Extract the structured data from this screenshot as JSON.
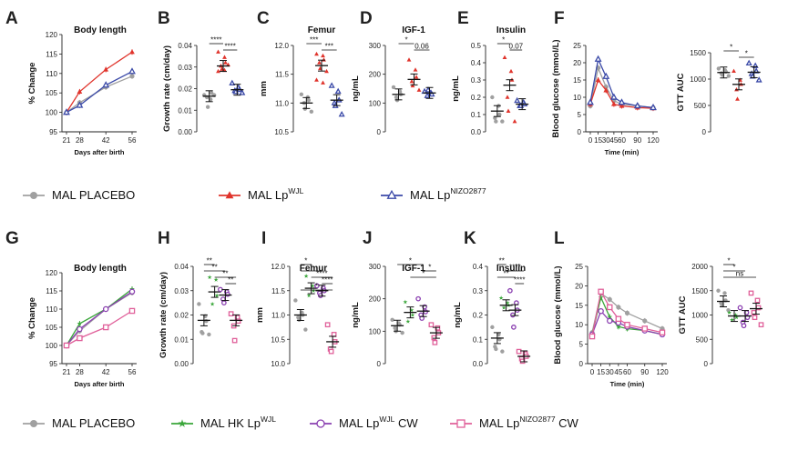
{
  "colors": {
    "placebo": "#a0a0a0",
    "wjl": "#e0342c",
    "nizo": "#3b4aa8",
    "hk": "#3aa63a",
    "wjlcw": "#8a3fb0",
    "nizocw": "#e0609a"
  },
  "legend_top": [
    {
      "key": "placebo",
      "label": "MAL PLACEBO",
      "sup": "",
      "marker": "circle"
    },
    {
      "key": "wjl",
      "label": "MAL Lp",
      "sup": "WJL",
      "marker": "triangle"
    },
    {
      "key": "nizo",
      "label": "MAL Lp",
      "sup": "NIZO2877",
      "marker": "triangle-open"
    }
  ],
  "legend_bottom": [
    {
      "key": "placebo",
      "label": "MAL PLACEBO",
      "sup": "",
      "marker": "circle"
    },
    {
      "key": "hk",
      "label": "MAL HK Lp",
      "sup": "WJL",
      "marker": "star"
    },
    {
      "key": "wjlcw",
      "label": "MAL Lp",
      "sup": "WJL",
      "label2": " CW",
      "marker": "circle-open"
    },
    {
      "key": "nizocw",
      "label": "MAL Lp",
      "sup": "NIZO2877",
      "label2": " CW",
      "marker": "square-open"
    }
  ],
  "chart_data": [
    {
      "id": "A",
      "type": "line",
      "title": "Body length",
      "xlabel": "Days after birth",
      "ylabel": "% Change",
      "x": [
        21,
        28,
        42,
        56
      ],
      "xticks": [
        "21",
        "28",
        "42",
        "56"
      ],
      "ylim": [
        95,
        120
      ],
      "yticks": [
        95,
        100,
        105,
        110,
        115,
        120
      ],
      "series": [
        {
          "key": "placebo",
          "values": [
            100,
            102.5,
            106.5,
            109.3
          ]
        },
        {
          "key": "wjl",
          "values": [
            100,
            105.3,
            111,
            115.5
          ]
        },
        {
          "key": "nizo",
          "values": [
            100,
            101.8,
            107,
            110.5
          ]
        }
      ]
    },
    {
      "id": "B",
      "type": "scatter",
      "title": "",
      "ylabel": "Growth rate (cm/day)",
      "ylim": [
        0.0,
        0.04
      ],
      "yticks": [
        "0.00",
        "0.01",
        "0.02",
        "0.03",
        "0.04"
      ],
      "groups": [
        {
          "key": "placebo",
          "mean": 0.0165,
          "points": [
            0.017,
            0.015,
            0.018,
            0.016,
            0.0115,
            0.017
          ]
        },
        {
          "key": "wjl",
          "mean": 0.0305,
          "points": [
            0.037,
            0.0345,
            0.032,
            0.0305,
            0.029,
            0.031,
            0.028,
            0.0285
          ]
        },
        {
          "key": "nizo",
          "mean": 0.0195,
          "points": [
            0.0225,
            0.0205,
            0.0195,
            0.019,
            0.0185,
            0.018
          ]
        }
      ],
      "sig": [
        {
          "from": 0,
          "to": 1,
          "label": "****"
        },
        {
          "from": 1,
          "to": 2,
          "label": "****"
        }
      ]
    },
    {
      "id": "C",
      "type": "scatter",
      "title": "Femur",
      "ylabel": "mm",
      "ylim": [
        10.5,
        12.0
      ],
      "yticks": [
        "10.5",
        "11.0",
        "11.5",
        "12.0"
      ],
      "groups": [
        {
          "key": "placebo",
          "mean": 11.0,
          "points": [
            11.15,
            11.1,
            11.05,
            11.0,
            10.9,
            10.85
          ]
        },
        {
          "key": "wjl",
          "mean": 11.65,
          "points": [
            11.85,
            11.82,
            11.75,
            11.7,
            11.6,
            11.55,
            11.4,
            11.35
          ]
        },
        {
          "key": "nizo",
          "mean": 11.05,
          "points": [
            11.3,
            11.2,
            11.05,
            11.0,
            10.95,
            10.8
          ]
        }
      ],
      "sig": [
        {
          "from": 0,
          "to": 1,
          "label": "***"
        },
        {
          "from": 1,
          "to": 2,
          "label": "***"
        }
      ]
    },
    {
      "id": "D",
      "type": "scatter",
      "title": "IGF-1",
      "ylabel": "ng/mL",
      "ylim": [
        0,
        300
      ],
      "yticks": [
        "0",
        "100",
        "200",
        "300"
      ],
      "groups": [
        {
          "key": "placebo",
          "mean": 130,
          "points": [
            155,
            140,
            130,
            120,
            110
          ]
        },
        {
          "key": "wjl",
          "mean": 182,
          "points": [
            250,
            215,
            190,
            175,
            160,
            145
          ]
        },
        {
          "key": "nizo",
          "mean": 135,
          "points": [
            140,
            135,
            130,
            125,
            145
          ]
        }
      ],
      "sig": [
        {
          "from": 0,
          "to": 1,
          "label": "*"
        },
        {
          "from": 1,
          "to": 2,
          "label": "0.06"
        }
      ]
    },
    {
      "id": "E",
      "type": "scatter",
      "title": "Insulin",
      "ylabel": "ng/mL",
      "ylim": [
        0.0,
        0.5
      ],
      "yticks": [
        "0.0",
        "0.1",
        "0.2",
        "0.3",
        "0.4",
        "0.5"
      ],
      "groups": [
        {
          "key": "placebo",
          "mean": 0.12,
          "points": [
            0.2,
            0.15,
            0.1,
            0.08,
            0.06,
            0.06
          ]
        },
        {
          "key": "wjl",
          "mean": 0.27,
          "points": [
            0.43,
            0.35,
            0.3,
            0.2,
            0.12,
            0.06
          ]
        },
        {
          "key": "nizo",
          "mean": 0.16,
          "points": [
            0.18,
            0.17,
            0.16,
            0.15,
            0.15
          ]
        }
      ],
      "sig": [
        {
          "from": 0,
          "to": 1,
          "label": "*"
        },
        {
          "from": 1,
          "to": 2,
          "label": "0.07"
        }
      ]
    },
    {
      "id": "F",
      "type": "line",
      "title": "",
      "xlabel": "Time (min)",
      "ylabel": "Blood glucose (mmol/L)",
      "x": [
        0,
        15,
        30,
        45,
        60,
        90,
        120
      ],
      "xticks": [
        "0",
        "15",
        "30",
        "45",
        "60",
        "90",
        "120"
      ],
      "ylim": [
        0,
        25
      ],
      "yticks": [
        0,
        5,
        10,
        15,
        20,
        25
      ],
      "series": [
        {
          "key": "placebo",
          "values": [
            7.5,
            18.5,
            13,
            9,
            8,
            7.5,
            7
          ]
        },
        {
          "key": "wjl",
          "values": [
            8,
            15,
            12,
            8,
            7.5,
            7,
            6.8
          ]
        },
        {
          "key": "nizo",
          "values": [
            8.5,
            21,
            16,
            10,
            8.5,
            7.5,
            7
          ]
        }
      ]
    },
    {
      "id": "F2",
      "type": "scatter",
      "title": "",
      "ylabel": "GTT AUC",
      "ylim": [
        0,
        1500
      ],
      "yticks": [
        "0",
        "500",
        "1000",
        "1500"
      ],
      "groups": [
        {
          "key": "placebo",
          "mean": 1125,
          "points": [
            1200,
            1170,
            1140,
            1110,
            1080,
            1060
          ]
        },
        {
          "key": "wjl",
          "mean": 900,
          "points": [
            1150,
            980,
            900,
            800,
            620
          ]
        },
        {
          "key": "nizo",
          "mean": 1130,
          "points": [
            1300,
            1250,
            1150,
            1100,
            1050,
            980
          ]
        }
      ],
      "sig": [
        {
          "from": 0,
          "to": 1,
          "label": "*"
        },
        {
          "from": 1,
          "to": 2,
          "label": "*"
        }
      ]
    },
    {
      "id": "G",
      "type": "line",
      "title": "Body length",
      "xlabel": "Days after birth",
      "ylabel": "% Change",
      "x": [
        21,
        28,
        42,
        56
      ],
      "xticks": [
        "21",
        "28",
        "42",
        "56"
      ],
      "ylim": [
        95,
        120
      ],
      "yticks": [
        95,
        100,
        105,
        110,
        115,
        120
      ],
      "series": [
        {
          "key": "placebo",
          "values": [
            100,
            104,
            110,
            114.5
          ]
        },
        {
          "key": "hk",
          "values": [
            100,
            106,
            110,
            115.5
          ]
        },
        {
          "key": "wjlcw",
          "values": [
            100,
            104.5,
            110,
            114.8
          ]
        },
        {
          "key": "nizocw",
          "values": [
            100,
            102,
            105,
            109.5
          ]
        }
      ]
    },
    {
      "id": "H",
      "type": "scatter",
      "title": "",
      "ylabel": "Growth rate (cm/day)",
      "ylim": [
        0.0,
        0.04
      ],
      "yticks": [
        "0.00",
        "0.01",
        "0.02",
        "0.03",
        "0.04"
      ],
      "groups": [
        {
          "key": "placebo",
          "mean": 0.0178,
          "points": [
            0.0245,
            0.0195,
            0.0175,
            0.013,
            0.0125,
            0.012
          ]
        },
        {
          "key": "hk",
          "mean": 0.0295,
          "points": [
            0.0355,
            0.0345,
            0.028,
            0.0245
          ]
        },
        {
          "key": "wjlcw",
          "mean": 0.0282,
          "points": [
            0.0305,
            0.0295,
            0.0285,
            0.0265,
            0.025
          ]
        },
        {
          "key": "nizocw",
          "mean": 0.0178,
          "points": [
            0.0205,
            0.019,
            0.0175,
            0.0155,
            0.0095
          ]
        }
      ],
      "sig": [
        {
          "from": 0,
          "to": 1,
          "label": "**"
        },
        {
          "from": 0,
          "to": 2,
          "label": "**"
        },
        {
          "from": 1,
          "to": 3,
          "label": "**"
        },
        {
          "from": 2,
          "to": 3,
          "label": "**"
        }
      ]
    },
    {
      "id": "I",
      "type": "scatter",
      "title": "Femur",
      "ylabel": "mm",
      "ylim": [
        10.0,
        12.0
      ],
      "yticks": [
        "10.0",
        "10.5",
        "11.0",
        "11.5",
        "12.0"
      ],
      "groups": [
        {
          "key": "placebo",
          "mean": 11.0,
          "points": [
            11.3,
            11.05,
            11.0,
            10.95,
            10.9,
            10.7
          ]
        },
        {
          "key": "hk",
          "mean": 11.55,
          "points": [
            11.8,
            11.6,
            11.5,
            11.4
          ]
        },
        {
          "key": "wjlcw",
          "mean": 11.5,
          "points": [
            11.6,
            11.55,
            11.5,
            11.45,
            11.4
          ]
        },
        {
          "key": "nizocw",
          "mean": 10.45,
          "points": [
            10.8,
            10.6,
            10.45,
            10.3,
            10.25
          ]
        }
      ],
      "sig": [
        {
          "from": 0,
          "to": 1,
          "label": "*"
        },
        {
          "from": 0,
          "to": 2,
          "label": "*"
        },
        {
          "from": 1,
          "to": 3,
          "label": "****"
        },
        {
          "from": 2,
          "to": 3,
          "label": "****"
        },
        {
          "from": 0,
          "to": 3,
          "label": "*"
        }
      ]
    },
    {
      "id": "J",
      "type": "scatter",
      "title": "IGF-1",
      "ylabel": "ng/mL",
      "ylim": [
        0,
        300
      ],
      "yticks": [
        "0",
        "100",
        "200",
        "300"
      ],
      "groups": [
        {
          "key": "placebo",
          "mean": 117,
          "points": [
            135,
            125,
            120,
            110,
            100,
            95
          ]
        },
        {
          "key": "hk",
          "mean": 158,
          "points": [
            190,
            165,
            150,
            130
          ]
        },
        {
          "key": "wjlcw",
          "mean": 162,
          "points": [
            200,
            175,
            160,
            150,
            140
          ]
        },
        {
          "key": "nizocw",
          "mean": 95,
          "points": [
            120,
            110,
            95,
            80,
            65
          ]
        }
      ],
      "sig": [
        {
          "from": 0,
          "to": 2,
          "label": "*"
        },
        {
          "from": 2,
          "to": 3,
          "label": "*"
        },
        {
          "from": 1,
          "to": 3,
          "label": "*"
        }
      ]
    },
    {
      "id": "K",
      "type": "scatter",
      "title": "Insulin",
      "ylabel": "ng/mL",
      "ylim": [
        0.0,
        0.4
      ],
      "yticks": [
        "0.0",
        "0.1",
        "0.2",
        "0.3",
        "0.4"
      ],
      "groups": [
        {
          "key": "placebo",
          "mean": 0.105,
          "points": [
            0.15,
            0.12,
            0.1,
            0.07,
            0.06,
            0.05
          ]
        },
        {
          "key": "hk",
          "mean": 0.24,
          "points": [
            0.27,
            0.25,
            0.24,
            0.23
          ]
        },
        {
          "key": "wjlcw",
          "mean": 0.22,
          "points": [
            0.3,
            0.25,
            0.22,
            0.2,
            0.15
          ]
        },
        {
          "key": "nizocw",
          "mean": 0.03,
          "points": [
            0.05,
            0.04,
            0.03,
            0.02,
            0.01
          ]
        }
      ],
      "sig": [
        {
          "from": 0,
          "to": 1,
          "label": "**"
        },
        {
          "from": 1,
          "to": 3,
          "label": "****"
        },
        {
          "from": 0,
          "to": 2,
          "label": "**"
        },
        {
          "from": 2,
          "to": 3,
          "label": "****"
        }
      ]
    },
    {
      "id": "L",
      "type": "line",
      "title": "",
      "xlabel": "Time (min)",
      "ylabel": "Blood glucose (mmol/L)",
      "x": [
        0,
        15,
        30,
        45,
        60,
        90,
        120
      ],
      "xticks": [
        "0",
        "15",
        "30",
        "45",
        "60",
        "90",
        "120"
      ],
      "ylim": [
        0,
        25
      ],
      "yticks": [
        0,
        5,
        10,
        15,
        20,
        25
      ],
      "series": [
        {
          "key": "placebo",
          "values": [
            8,
            18,
            16.5,
            14.5,
            13,
            11,
            9
          ]
        },
        {
          "key": "hk",
          "values": [
            7.5,
            17,
            12,
            9.5,
            9,
            8.5,
            7.5
          ]
        },
        {
          "key": "wjlcw",
          "values": [
            7.5,
            13.5,
            11,
            10.5,
            9.5,
            8.5,
            7.5
          ]
        },
        {
          "key": "nizocw",
          "values": [
            7,
            18.5,
            14.5,
            11.5,
            10,
            9,
            8
          ]
        }
      ]
    },
    {
      "id": "L2",
      "type": "scatter",
      "title": "",
      "ylabel": "GTT AUC",
      "ylim": [
        0,
        2000
      ],
      "yticks": [
        "0",
        "500",
        "1000",
        "1500",
        "2000"
      ],
      "groups": [
        {
          "key": "placebo",
          "mean": 1280,
          "points": [
            1500,
            1450,
            1300,
            1250,
            1200,
            1100
          ]
        },
        {
          "key": "hk",
          "mean": 980,
          "points": [
            1050,
            1000,
            950,
            900
          ]
        },
        {
          "key": "wjlcw",
          "mean": 980,
          "points": [
            1150,
            1050,
            950,
            850,
            780
          ]
        },
        {
          "key": "nizocw",
          "mean": 1130,
          "points": [
            1450,
            1300,
            1150,
            1050,
            950,
            800
          ]
        }
      ],
      "sig": [
        {
          "from": 0,
          "to": 1,
          "label": "*"
        },
        {
          "from": 0,
          "to": 2,
          "label": "*"
        },
        {
          "from": 0,
          "to": 3,
          "label": "ns"
        }
      ]
    }
  ]
}
